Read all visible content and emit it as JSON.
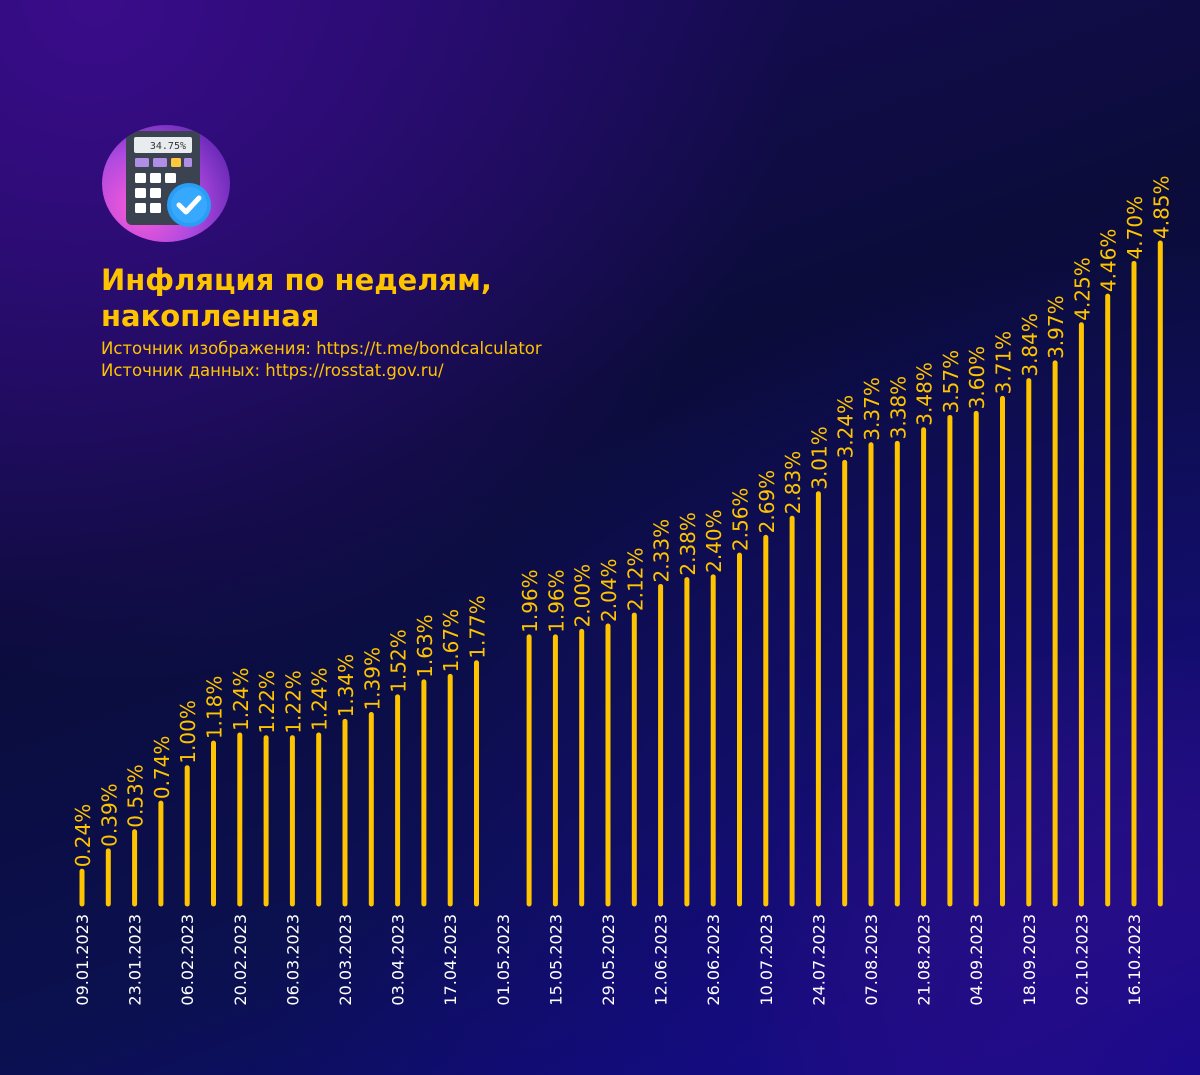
{
  "header": {
    "title_line1": "Инфляция по неделям,",
    "title_line2": "накопленная",
    "source_image": "Источник изображения: https://t.me/bondcalculator",
    "source_data": "Источник данных: https://rosstat.gov.ru/",
    "logo_display": "34.75%"
  },
  "colors": {
    "bar": "#ffc400",
    "label": "#ffc400",
    "date": "#ffffff"
  },
  "chart_data": {
    "type": "bar",
    "title": "Инфляция по неделям, накопленная",
    "xlabel": "",
    "ylabel": "",
    "ylim": [
      0,
      4.85
    ],
    "grid": false,
    "slots": 41,
    "bars": [
      {
        "slot": 0,
        "value": 0.24,
        "label": "0.24%"
      },
      {
        "slot": 1,
        "value": 0.39,
        "label": "0.39%"
      },
      {
        "slot": 2,
        "value": 0.53,
        "label": "0.53%"
      },
      {
        "slot": 3,
        "value": 0.74,
        "label": "0.74%"
      },
      {
        "slot": 4,
        "value": 1.0,
        "label": "1.00%"
      },
      {
        "slot": 5,
        "value": 1.18,
        "label": "1.18%"
      },
      {
        "slot": 6,
        "value": 1.24,
        "label": "1.24%"
      },
      {
        "slot": 7,
        "value": 1.22,
        "label": "1.22%"
      },
      {
        "slot": 8,
        "value": 1.22,
        "label": "1.22%"
      },
      {
        "slot": 9,
        "value": 1.24,
        "label": "1.24%"
      },
      {
        "slot": 10,
        "value": 1.34,
        "label": "1.34%"
      },
      {
        "slot": 11,
        "value": 1.39,
        "label": "1.39%"
      },
      {
        "slot": 12,
        "value": 1.52,
        "label": "1.52%"
      },
      {
        "slot": 13,
        "value": 1.63,
        "label": "1.63%"
      },
      {
        "slot": 14,
        "value": 1.67,
        "label": "1.67%"
      },
      {
        "slot": 15,
        "value": 1.77,
        "label": "1.77%"
      },
      {
        "slot": 17,
        "value": 1.96,
        "label": "1.96%"
      },
      {
        "slot": 18,
        "value": 1.96,
        "label": "1.96%"
      },
      {
        "slot": 19,
        "value": 2.0,
        "label": "2.00%"
      },
      {
        "slot": 20,
        "value": 2.04,
        "label": "2.04%"
      },
      {
        "slot": 21,
        "value": 2.12,
        "label": "2.12%"
      },
      {
        "slot": 22,
        "value": 2.33,
        "label": "2.33%"
      },
      {
        "slot": 23,
        "value": 2.38,
        "label": "2.38%"
      },
      {
        "slot": 24,
        "value": 2.4,
        "label": "2.40%"
      },
      {
        "slot": 25,
        "value": 2.56,
        "label": "2.56%"
      },
      {
        "slot": 26,
        "value": 2.69,
        "label": "2.69%"
      },
      {
        "slot": 27,
        "value": 2.83,
        "label": "2.83%"
      },
      {
        "slot": 28,
        "value": 3.01,
        "label": "3.01%"
      },
      {
        "slot": 29,
        "value": 3.24,
        "label": "3.24%"
      },
      {
        "slot": 30,
        "value": 3.37,
        "label": "3.37%"
      },
      {
        "slot": 31,
        "value": 3.38,
        "label": "3.38%"
      },
      {
        "slot": 32,
        "value": 3.48,
        "label": "3.48%"
      },
      {
        "slot": 33,
        "value": 3.57,
        "label": "3.57%"
      },
      {
        "slot": 34,
        "value": 3.6,
        "label": "3.60%"
      },
      {
        "slot": 35,
        "value": 3.71,
        "label": "3.71%"
      },
      {
        "slot": 36,
        "value": 3.84,
        "label": "3.84%"
      },
      {
        "slot": 37,
        "value": 3.97,
        "label": "3.97%"
      },
      {
        "slot": 38,
        "value": 4.25,
        "label": "4.25%"
      },
      {
        "slot": 39,
        "value": 4.46,
        "label": "4.46%"
      },
      {
        "slot": 40,
        "value": 4.7,
        "label": "4.70%"
      },
      {
        "slot": 41,
        "value": 4.85,
        "label": "4.85%"
      }
    ],
    "date_labels": [
      {
        "slot": 0,
        "text": "09.01.2023"
      },
      {
        "slot": 2,
        "text": "23.01.2023"
      },
      {
        "slot": 4,
        "text": "06.02.2023"
      },
      {
        "slot": 6,
        "text": "20.02.2023"
      },
      {
        "slot": 8,
        "text": "06.03.2023"
      },
      {
        "slot": 10,
        "text": "20.03.2023"
      },
      {
        "slot": 12,
        "text": "03.04.2023"
      },
      {
        "slot": 14,
        "text": "17.04.2023"
      },
      {
        "slot": 16,
        "text": "01.05.2023"
      },
      {
        "slot": 18,
        "text": "15.05.2023"
      },
      {
        "slot": 20,
        "text": "29.05.2023"
      },
      {
        "slot": 22,
        "text": "12.06.2023"
      },
      {
        "slot": 24,
        "text": "26.06.2023"
      },
      {
        "slot": 26,
        "text": "10.07.2023"
      },
      {
        "slot": 28,
        "text": "24.07.2023"
      },
      {
        "slot": 30,
        "text": "07.08.2023"
      },
      {
        "slot": 32,
        "text": "21.08.2023"
      },
      {
        "slot": 34,
        "text": "04.09.2023"
      },
      {
        "slot": 36,
        "text": "18.09.2023"
      },
      {
        "slot": 38,
        "text": "02.10.2023"
      },
      {
        "slot": 40,
        "text": "16.10.2023"
      }
    ]
  }
}
